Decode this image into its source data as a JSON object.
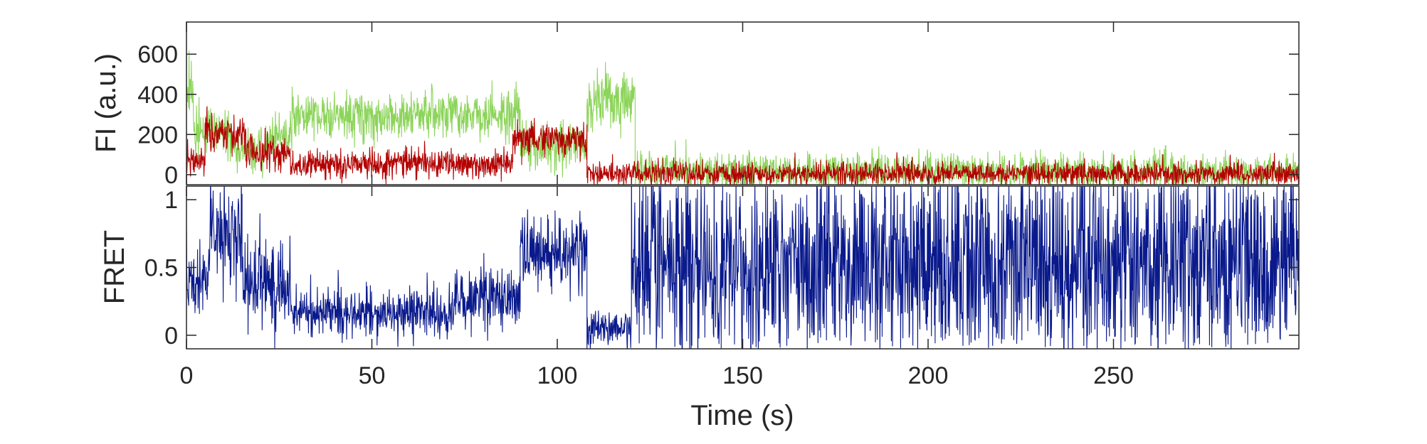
{
  "chart_data": [
    {
      "type": "line",
      "panel": "top",
      "title": "",
      "xlabel": "",
      "ylabel": "FI (a.u.)",
      "xlim": [
        0,
        300
      ],
      "ylim": [
        -50,
        760
      ],
      "yticks": [
        0,
        200,
        400,
        600
      ],
      "ytick_labels": [
        "0",
        "200",
        "400",
        "600"
      ],
      "grid": false,
      "series": [
        {
          "color": "#8cd45a",
          "segments": [
            {
              "x_start": 0,
              "x_end": 2,
              "mean": 420,
              "noise": 70
            },
            {
              "x_start": 2,
              "x_end": 12,
              "mean": 230,
              "noise": 60
            },
            {
              "x_start": 12,
              "x_end": 22,
              "mean": 130,
              "noise": 50
            },
            {
              "x_start": 22,
              "x_end": 28,
              "mean": 190,
              "noise": 55
            },
            {
              "x_start": 28,
              "x_end": 60,
              "mean": 290,
              "noise": 60
            },
            {
              "x_start": 60,
              "x_end": 90,
              "mean": 300,
              "noise": 60
            },
            {
              "x_start": 90,
              "x_end": 108,
              "mean": 160,
              "noise": 55
            },
            {
              "x_start": 108,
              "x_end": 121,
              "mean": 370,
              "noise": 70
            },
            {
              "x_start": 121,
              "x_end": 300,
              "mean": 15,
              "noise": 45
            }
          ]
        },
        {
          "color": "#b30000",
          "segments": [
            {
              "x_start": 0,
              "x_end": 5,
              "mean": 70,
              "noise": 40
            },
            {
              "x_start": 5,
              "x_end": 16,
              "mean": 200,
              "noise": 50
            },
            {
              "x_start": 16,
              "x_end": 28,
              "mean": 110,
              "noise": 45
            },
            {
              "x_start": 28,
              "x_end": 88,
              "mean": 55,
              "noise": 35
            },
            {
              "x_start": 88,
              "x_end": 108,
              "mean": 180,
              "noise": 45
            },
            {
              "x_start": 108,
              "x_end": 300,
              "mean": 5,
              "noise": 30
            }
          ]
        }
      ]
    },
    {
      "type": "line",
      "panel": "bottom",
      "title": "",
      "xlabel": "Time (s)",
      "ylabel": "FRET",
      "xlim": [
        0,
        300
      ],
      "ylim": [
        -0.1,
        1.1
      ],
      "yticks": [
        0,
        0.5,
        1
      ],
      "ytick_labels": [
        "0",
        "0.5",
        "1"
      ],
      "xticks": [
        0,
        50,
        100,
        150,
        200,
        250
      ],
      "xtick_labels": [
        "0",
        "50",
        "100",
        "150",
        "200",
        "250"
      ],
      "grid": false,
      "series": [
        {
          "color": "#0a1a8c",
          "segments": [
            {
              "x_start": 0,
              "x_end": 6,
              "mean": 0.38,
              "noise": 0.14
            },
            {
              "x_start": 6,
              "x_end": 15,
              "mean": 0.72,
              "noise": 0.18
            },
            {
              "x_start": 15,
              "x_end": 28,
              "mean": 0.38,
              "noise": 0.18
            },
            {
              "x_start": 28,
              "x_end": 72,
              "mean": 0.17,
              "noise": 0.09
            },
            {
              "x_start": 72,
              "x_end": 90,
              "mean": 0.28,
              "noise": 0.12
            },
            {
              "x_start": 90,
              "x_end": 108,
              "mean": 0.62,
              "noise": 0.15
            },
            {
              "x_start": 108,
              "x_end": 120,
              "mean": 0.04,
              "noise": 0.06
            },
            {
              "x_start": 120,
              "x_end": 300,
              "mean": 0.5,
              "noise": 0.5
            }
          ]
        }
      ]
    }
  ]
}
